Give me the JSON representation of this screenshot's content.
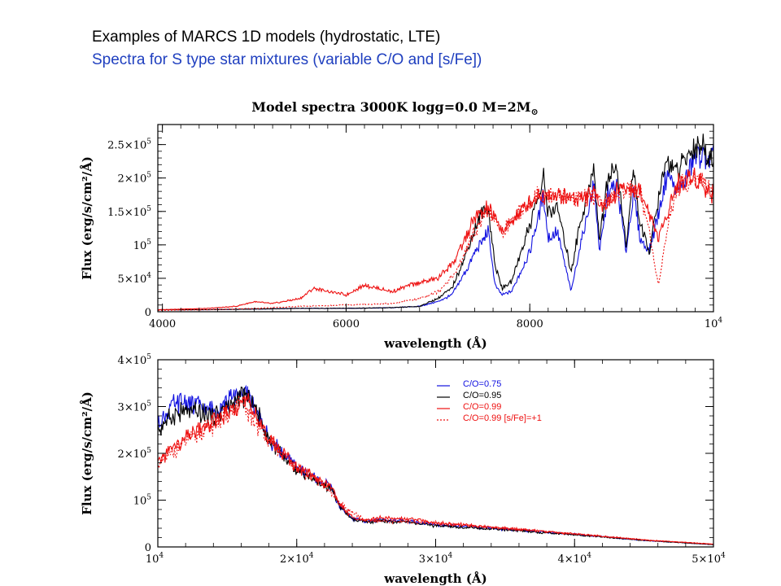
{
  "slide": {
    "heading": "Examples of MARCS 1D models (hydrostatic, LTE)",
    "heading_color": "#000000",
    "subheading": "Spectra for S type star mixtures (variable C/O and [s/Fe])",
    "subheading_color": "#1f3fbf"
  },
  "chart_data": [
    {
      "type": "line",
      "title": "Model spectra 3000K logg=0.0 M=2M",
      "title_symbol": "⊙",
      "xlabel": "wavelength (Å)",
      "ylabel": "Flux (erg/s/cm²/Å)",
      "xlim": [
        3950,
        10000
      ],
      "ylim": [
        0,
        280000
      ],
      "x_ticks": [
        {
          "value": 4000,
          "label": "4000"
        },
        {
          "value": 6000,
          "label": "6000"
        },
        {
          "value": 8000,
          "label": "8000"
        },
        {
          "value": 10000,
          "label": "10",
          "sup": "4"
        }
      ],
      "y_ticks": [
        {
          "value": 0,
          "label": "0"
        },
        {
          "value": 50000,
          "label": "5×10",
          "sup": "4"
        },
        {
          "value": 100000,
          "label": "10",
          "sup": "5"
        },
        {
          "value": 150000,
          "label": "1.5×10",
          "sup": "5"
        },
        {
          "value": 200000,
          "label": "2×10",
          "sup": "5"
        },
        {
          "value": 250000,
          "label": "2.5×10",
          "sup": "5"
        }
      ],
      "series": [
        {
          "key": "co075",
          "color": "#1010e0",
          "dash": "",
          "x": [
            3950,
            4500,
            5000,
            5500,
            6000,
            6500,
            6800,
            7000,
            7150,
            7300,
            7450,
            7550,
            7620,
            7700,
            7800,
            8000,
            8150,
            8200,
            8300,
            8450,
            8550,
            8700,
            8760,
            8850,
            8950,
            9050,
            9130,
            9200,
            9300,
            9420,
            9500,
            9600,
            9700,
            9800,
            9900,
            9950,
            10000
          ],
          "y": [
            3000,
            3000,
            4000,
            5000,
            5000,
            6000,
            8000,
            15000,
            25000,
            60000,
            100000,
            120000,
            40000,
            25000,
            30000,
            90000,
            175000,
            110000,
            120000,
            30000,
            100000,
            190000,
            90000,
            175000,
            190000,
            90000,
            180000,
            110000,
            90000,
            160000,
            210000,
            180000,
            200000,
            230000,
            235000,
            225000,
            230000
          ]
        },
        {
          "key": "co095",
          "color": "#000000",
          "dash": "",
          "x": [
            3950,
            4500,
            5000,
            5500,
            6000,
            6500,
            6800,
            7000,
            7150,
            7300,
            7450,
            7550,
            7620,
            7700,
            7800,
            8000,
            8150,
            8200,
            8300,
            8450,
            8550,
            8700,
            8760,
            8850,
            8950,
            9050,
            9130,
            9200,
            9300,
            9420,
            9500,
            9600,
            9700,
            9800,
            9900,
            9950,
            10000
          ],
          "y": [
            3000,
            3000,
            4000,
            5000,
            5000,
            6000,
            8000,
            20000,
            35000,
            85000,
            140000,
            155000,
            70000,
            35000,
            45000,
            130000,
            200000,
            150000,
            155000,
            60000,
            135000,
            215000,
            105000,
            205000,
            215000,
            95000,
            215000,
            130000,
            90000,
            180000,
            230000,
            205000,
            230000,
            250000,
            245000,
            225000,
            230000
          ]
        },
        {
          "key": "co099",
          "color": "#ee1111",
          "dash": "",
          "x": [
            3950,
            4500,
            4800,
            5000,
            5200,
            5500,
            5650,
            6000,
            6200,
            6500,
            6700,
            7000,
            7200,
            7400,
            7550,
            7700,
            7900,
            8100,
            8300,
            8500,
            8700,
            8800,
            9000,
            9200,
            9300,
            9400,
            9600,
            9800,
            9950,
            10000
          ],
          "y": [
            3000,
            5000,
            8000,
            15000,
            12000,
            20000,
            35000,
            25000,
            40000,
            30000,
            40000,
            50000,
            80000,
            140000,
            155000,
            120000,
            150000,
            175000,
            175000,
            170000,
            175000,
            160000,
            185000,
            180000,
            150000,
            110000,
            190000,
            205000,
            180000,
            175000
          ]
        },
        {
          "key": "co099sfe",
          "color": "#ee1111",
          "dash": "2,2",
          "x": [
            3950,
            4500,
            5000,
            5500,
            6000,
            6500,
            6800,
            7000,
            7200,
            7400,
            7550,
            7700,
            7900,
            8100,
            8300,
            8500,
            8700,
            8800,
            9000,
            9200,
            9300,
            9400,
            9500,
            9600,
            9800,
            9950,
            10000
          ],
          "y": [
            2000,
            3000,
            5000,
            8000,
            10000,
            12000,
            20000,
            30000,
            60000,
            120000,
            150000,
            120000,
            150000,
            175000,
            175000,
            170000,
            175000,
            160000,
            185000,
            180000,
            120000,
            40000,
            120000,
            185000,
            200000,
            190000,
            180000
          ]
        }
      ]
    },
    {
      "type": "line",
      "xlabel": "wavelength (Å)",
      "ylabel": "Flux (erg/s/cm²/Å)",
      "xlim": [
        10000,
        50000
      ],
      "ylim": [
        0,
        400000
      ],
      "x_ticks": [
        {
          "value": 10000,
          "label": "10",
          "sup": "4"
        },
        {
          "value": 20000,
          "label": "2×10",
          "sup": "4"
        },
        {
          "value": 30000,
          "label": "3×10",
          "sup": "4"
        },
        {
          "value": 40000,
          "label": "4×10",
          "sup": "4"
        },
        {
          "value": 50000,
          "label": "5×10",
          "sup": "4"
        }
      ],
      "y_ticks": [
        {
          "value": 0,
          "label": "0"
        },
        {
          "value": 100000,
          "label": "10",
          "sup": "5"
        },
        {
          "value": 200000,
          "label": "2×10",
          "sup": "5"
        },
        {
          "value": 300000,
          "label": "3×10",
          "sup": "5"
        },
        {
          "value": 400000,
          "label": "4×10",
          "sup": "5"
        }
      ],
      "legend_position": "top-right",
      "legend": [
        {
          "label": "C/O=0.75",
          "color": "#1010e0",
          "dash": ""
        },
        {
          "label": "C/O=0.95",
          "color": "#000000",
          "dash": ""
        },
        {
          "label": "C/O=0.99",
          "color": "#ee1111",
          "dash": ""
        },
        {
          "label": "C/O=0.99 [s/Fe]=+1",
          "color": "#ee1111",
          "dash": "2,2"
        }
      ],
      "series": [
        {
          "key": "co075",
          "color": "#1010e0",
          "dash": "",
          "x": [
            10000,
            11000,
            12000,
            13000,
            14000,
            15000,
            15500,
            16000,
            16500,
            17000,
            17500,
            18000,
            19000,
            20000,
            21000,
            22000,
            22500,
            23000,
            24000,
            25000,
            26000,
            28000,
            30000,
            35000,
            40000,
            45000,
            50000
          ],
          "y": [
            260000,
            300000,
            310000,
            300000,
            290000,
            310000,
            320000,
            330000,
            320000,
            300000,
            260000,
            230000,
            200000,
            170000,
            155000,
            135000,
            130000,
            90000,
            60000,
            55000,
            57000,
            55000,
            47000,
            38000,
            27000,
            14000,
            5000
          ]
        },
        {
          "key": "co095",
          "color": "#000000",
          "dash": "",
          "x": [
            10000,
            11000,
            12000,
            13000,
            14000,
            15000,
            15500,
            16000,
            16500,
            17000,
            17500,
            18000,
            19000,
            20000,
            21000,
            22000,
            22500,
            23000,
            24000,
            25000,
            26000,
            28000,
            30000,
            35000,
            40000,
            45000,
            50000
          ],
          "y": [
            250000,
            280000,
            290000,
            285000,
            280000,
            295000,
            310000,
            325000,
            320000,
            300000,
            260000,
            230000,
            195000,
            165000,
            150000,
            130000,
            125000,
            90000,
            58000,
            53000,
            55000,
            53000,
            45000,
            37000,
            26000,
            14000,
            5000
          ]
        },
        {
          "key": "co099",
          "color": "#ee1111",
          "dash": "",
          "x": [
            10000,
            11000,
            12000,
            13000,
            14000,
            15000,
            15500,
            16000,
            16500,
            17000,
            17500,
            18000,
            19000,
            20000,
            21000,
            22000,
            22500,
            23000,
            24000,
            25000,
            26000,
            28000,
            30000,
            35000,
            40000,
            45000,
            50000
          ],
          "y": [
            180000,
            210000,
            230000,
            250000,
            265000,
            285000,
            300000,
            310000,
            305000,
            290000,
            255000,
            230000,
            200000,
            170000,
            155000,
            135000,
            130000,
            95000,
            62000,
            57000,
            62000,
            60000,
            52000,
            40000,
            28000,
            15000,
            6000
          ]
        },
        {
          "key": "co099sfe",
          "color": "#ee1111",
          "dash": "2,2",
          "x": [
            10000,
            12000,
            14000,
            16000,
            18000,
            20000,
            22000,
            23000,
            25000,
            30000,
            35000,
            40000,
            45000,
            50000
          ],
          "y": [
            175000,
            225000,
            260000,
            305000,
            228000,
            168000,
            133000,
            93000,
            56000,
            51000,
            40000,
            28000,
            15000,
            6000
          ]
        }
      ]
    }
  ]
}
